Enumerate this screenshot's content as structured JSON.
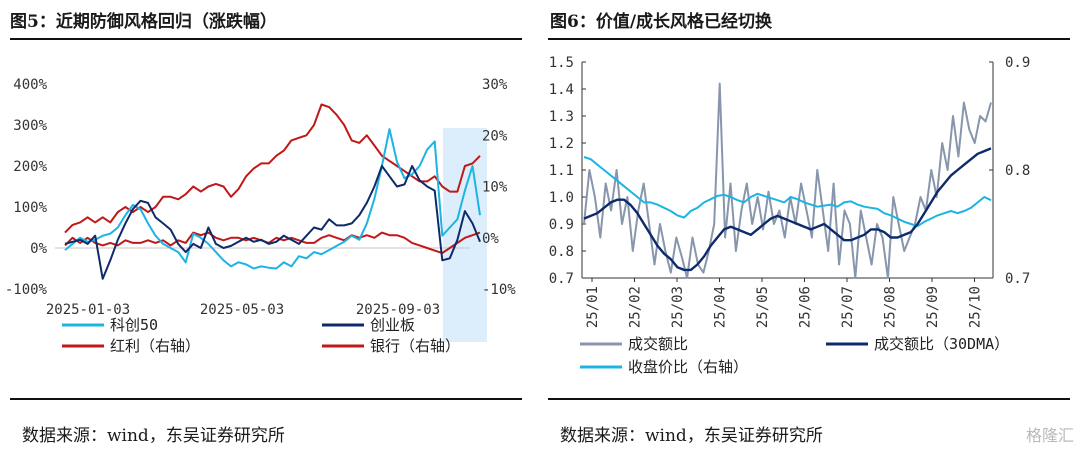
{
  "left": {
    "title": "图5：近期防御风格回归（涨跌幅）",
    "source": "数据来源：wind，东吴证券研究所",
    "chart_data": {
      "type": "line",
      "x_ticks": [
        "2025-01-03",
        "2025-05-03",
        "2025-09-03"
      ],
      "y_left_ticks": [
        "400%",
        "300%",
        "200%",
        "100%",
        "0%",
        "-100%"
      ],
      "y_left_lim": [
        -100,
        400
      ],
      "y_right_ticks": [
        "30%",
        "20%",
        "10%",
        "0%",
        "-10%"
      ],
      "y_right_lim": [
        -10,
        30
      ],
      "highlight_band": "shaded recent period (late Sep – Oct)",
      "series": [
        {
          "name": "科创50",
          "axis": "left",
          "color": "#1cb4e3",
          "values": [
            -5,
            10,
            25,
            15,
            20,
            30,
            35,
            50,
            80,
            105,
            95,
            60,
            30,
            10,
            0,
            -10,
            -35,
            35,
            25,
            10,
            -10,
            -30,
            -45,
            -35,
            -40,
            -50,
            -45,
            -48,
            -50,
            -35,
            -45,
            -20,
            -25,
            -10,
            -15,
            -5,
            5,
            15,
            30,
            20,
            60,
            120,
            200,
            290,
            210,
            170,
            180,
            200,
            240,
            260,
            30,
            50,
            70,
            140,
            200,
            80
          ]
        },
        {
          "name": "创业板",
          "axis": "left",
          "color": "#0d2a6b",
          "values": [
            10,
            15,
            20,
            10,
            30,
            -75,
            -30,
            20,
            60,
            95,
            115,
            110,
            75,
            60,
            45,
            10,
            -10,
            10,
            0,
            50,
            10,
            0,
            5,
            15,
            25,
            15,
            20,
            10,
            15,
            30,
            20,
            10,
            30,
            50,
            45,
            70,
            55,
            55,
            60,
            80,
            110,
            150,
            200,
            175,
            150,
            155,
            200,
            165,
            150,
            140,
            -30,
            -25,
            20,
            90,
            60,
            15
          ]
        },
        {
          "name": "红利（右轴）",
          "axis": "right",
          "color": "#c01818",
          "values": [
            1,
            2.5,
            3,
            4,
            3,
            4,
            3,
            5,
            6,
            5,
            6,
            5,
            6,
            8,
            8,
            7.5,
            8.5,
            10,
            9,
            10,
            10.5,
            10,
            8,
            9.5,
            12,
            13.5,
            14.5,
            14.5,
            16,
            17,
            19,
            19.5,
            20,
            22,
            26,
            25.5,
            24,
            22,
            19,
            18.5,
            20,
            18,
            16,
            15,
            14,
            13,
            12,
            11,
            11,
            12,
            10,
            9,
            9,
            14,
            14.5,
            16
          ]
        },
        {
          "name": "银行（右轴）",
          "axis": "right",
          "color": "#c01818",
          "values": [
            -1.5,
            0,
            -1,
            0,
            -1,
            -1.5,
            -1,
            -1.5,
            -0.5,
            -1,
            -1,
            -0.5,
            -1,
            -0.5,
            -1.5,
            -0.5,
            -1,
            1,
            0.5,
            1,
            0,
            -0.5,
            0,
            0,
            -0.5,
            0,
            -0.5,
            -1,
            0,
            -0.5,
            0,
            -0.5,
            -1,
            -1,
            0,
            0.5,
            0,
            -0.5,
            0.5,
            0,
            0.5,
            0,
            1,
            0.5,
            0.5,
            0,
            -1,
            -1.5,
            -2,
            -2.5,
            -3,
            -2,
            -1,
            0,
            0.5,
            1
          ]
        }
      ]
    }
  },
  "right": {
    "title": "图6：价值/成长风格已经切换",
    "source": "数据来源：wind，东吴证券研究所",
    "chart_data": {
      "type": "line",
      "x_ticks": [
        "25/01",
        "25/02",
        "25/03",
        "25/04",
        "25/05",
        "25/06",
        "25/07",
        "25/08",
        "25/09",
        "25/10"
      ],
      "y_left_ticks": [
        "1.5",
        "1.4",
        "1.3",
        "1.2",
        "1.1",
        "1.0",
        "0.9",
        "0.8",
        "0.7"
      ],
      "y_left_lim": [
        0.7,
        1.5
      ],
      "y_right_ticks": [
        "0.9",
        "0.8",
        "0.7"
      ],
      "y_right_lim": [
        0.7,
        0.9
      ],
      "series": [
        {
          "name": "成交额比",
          "axis": "left",
          "color": "#8896ad",
          "values": [
            0.9,
            1.1,
            1.0,
            0.85,
            1.05,
            0.95,
            1.1,
            0.9,
            1.0,
            0.8,
            0.95,
            1.05,
            0.9,
            0.75,
            0.9,
            0.8,
            0.72,
            0.85,
            0.78,
            0.7,
            0.85,
            0.75,
            0.72,
            0.8,
            0.9,
            1.42,
            0.85,
            1.05,
            0.8,
            0.95,
            1.05,
            0.9,
            1.0,
            0.88,
            1.02,
            0.9,
            0.95,
            0.85,
            1.0,
            0.9,
            1.05,
            0.95,
            0.85,
            1.1,
            0.95,
            0.8,
            1.05,
            0.75,
            0.95,
            0.9,
            0.7,
            0.95,
            0.85,
            0.75,
            0.9,
            0.85,
            0.7,
            1.0,
            0.9,
            0.8,
            0.85,
            0.9,
            1.0,
            0.95,
            1.1,
            1.0,
            1.2,
            1.1,
            1.3,
            1.15,
            1.35,
            1.25,
            1.2,
            1.3,
            1.28,
            1.35
          ]
        },
        {
          "name": "成交额比（30DMA）",
          "axis": "left",
          "color": "#0d2a6b",
          "values": [
            0.92,
            0.93,
            0.94,
            0.96,
            0.98,
            0.99,
            0.99,
            0.97,
            0.94,
            0.9,
            0.86,
            0.82,
            0.79,
            0.77,
            0.74,
            0.73,
            0.73,
            0.75,
            0.78,
            0.82,
            0.85,
            0.88,
            0.89,
            0.88,
            0.87,
            0.86,
            0.88,
            0.9,
            0.92,
            0.93,
            0.92,
            0.91,
            0.9,
            0.89,
            0.88,
            0.89,
            0.9,
            0.88,
            0.86,
            0.84,
            0.84,
            0.85,
            0.86,
            0.88,
            0.88,
            0.87,
            0.85,
            0.85,
            0.86,
            0.87,
            0.9,
            0.94,
            0.98,
            1.02,
            1.05,
            1.08,
            1.1,
            1.12,
            1.14,
            1.16,
            1.17,
            1.18
          ]
        },
        {
          "name": "收盘价比（右轴）",
          "axis": "right",
          "color": "#1cb4e3",
          "values": [
            0.812,
            0.81,
            0.805,
            0.8,
            0.795,
            0.79,
            0.785,
            0.78,
            0.775,
            0.77,
            0.77,
            0.768,
            0.765,
            0.762,
            0.758,
            0.756,
            0.762,
            0.765,
            0.77,
            0.773,
            0.776,
            0.777,
            0.775,
            0.772,
            0.77,
            0.775,
            0.778,
            0.776,
            0.774,
            0.772,
            0.77,
            0.775,
            0.773,
            0.77,
            0.768,
            0.766,
            0.767,
            0.768,
            0.766,
            0.77,
            0.771,
            0.768,
            0.766,
            0.765,
            0.764,
            0.76,
            0.758,
            0.755,
            0.752,
            0.75,
            0.748,
            0.752,
            0.755,
            0.758,
            0.76,
            0.762,
            0.76,
            0.762,
            0.765,
            0.77,
            0.775,
            0.772
          ]
        }
      ]
    }
  },
  "watermark": "格隆汇"
}
